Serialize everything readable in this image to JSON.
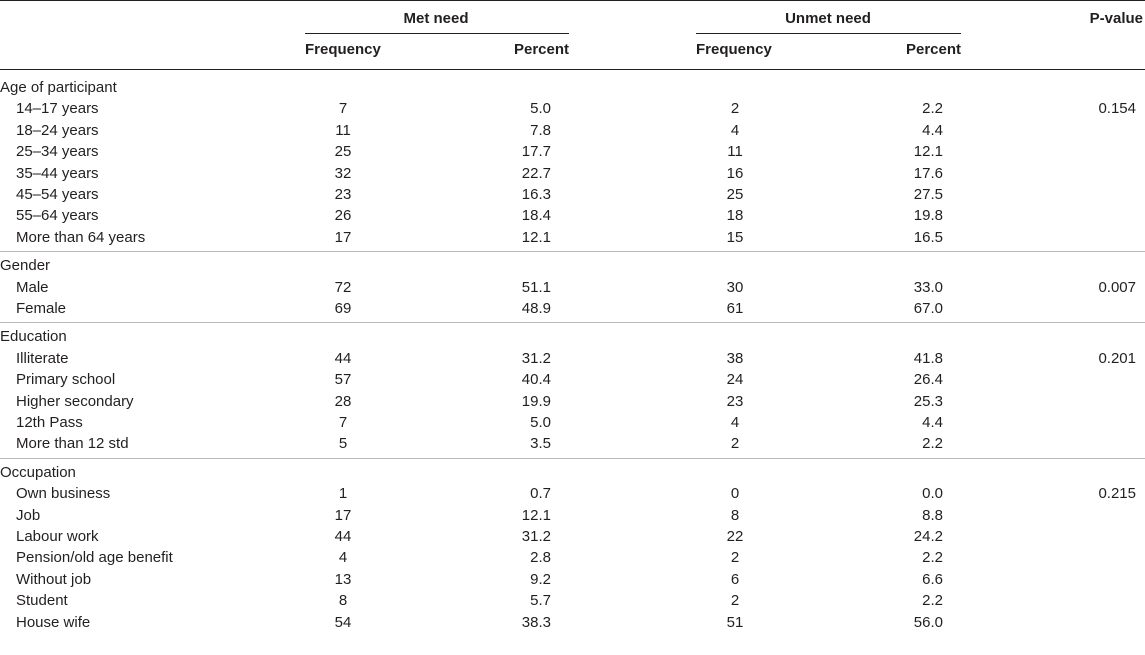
{
  "header": {
    "group_met": "Met need",
    "group_unmet": "Unmet need",
    "pvalue": "P-value",
    "col_freq": "Frequency",
    "col_pct": "Percent"
  },
  "sections": [
    {
      "title": "Age of participant",
      "pvalue": "0.154",
      "rows": [
        {
          "label": "14–17 years",
          "met_freq": "7",
          "met_pct": "5.0",
          "unmet_freq": "2",
          "unmet_pct": "2.2"
        },
        {
          "label": "18–24 years",
          "met_freq": "11",
          "met_pct": "7.8",
          "unmet_freq": "4",
          "unmet_pct": "4.4"
        },
        {
          "label": "25–34 years",
          "met_freq": "25",
          "met_pct": "17.7",
          "unmet_freq": "11",
          "unmet_pct": "12.1"
        },
        {
          "label": "35–44 years",
          "met_freq": "32",
          "met_pct": "22.7",
          "unmet_freq": "16",
          "unmet_pct": "17.6"
        },
        {
          "label": "45–54 years",
          "met_freq": "23",
          "met_pct": "16.3",
          "unmet_freq": "25",
          "unmet_pct": "27.5"
        },
        {
          "label": "55–64 years",
          "met_freq": "26",
          "met_pct": "18.4",
          "unmet_freq": "18",
          "unmet_pct": "19.8"
        },
        {
          "label": "More than 64 years",
          "met_freq": "17",
          "met_pct": "12.1",
          "unmet_freq": "15",
          "unmet_pct": "16.5"
        }
      ]
    },
    {
      "title": "Gender",
      "pvalue": "0.007",
      "rows": [
        {
          "label": "Male",
          "met_freq": "72",
          "met_pct": "51.1",
          "unmet_freq": "30",
          "unmet_pct": "33.0"
        },
        {
          "label": "Female",
          "met_freq": "69",
          "met_pct": "48.9",
          "unmet_freq": "61",
          "unmet_pct": "67.0"
        }
      ]
    },
    {
      "title": "Education",
      "pvalue": "0.201",
      "rows": [
        {
          "label": "Illiterate",
          "met_freq": "44",
          "met_pct": "31.2",
          "unmet_freq": "38",
          "unmet_pct": "41.8"
        },
        {
          "label": "Primary school",
          "met_freq": "57",
          "met_pct": "40.4",
          "unmet_freq": "24",
          "unmet_pct": "26.4"
        },
        {
          "label": "Higher secondary",
          "met_freq": "28",
          "met_pct": "19.9",
          "unmet_freq": "23",
          "unmet_pct": "25.3"
        },
        {
          "label": "12th Pass",
          "met_freq": "7",
          "met_pct": "5.0",
          "unmet_freq": "4",
          "unmet_pct": "4.4"
        },
        {
          "label": "More than 12 std",
          "met_freq": "5",
          "met_pct": "3.5",
          "unmet_freq": "2",
          "unmet_pct": "2.2"
        }
      ]
    },
    {
      "title": "Occupation",
      "pvalue": "0.215",
      "rows": [
        {
          "label": "Own business",
          "met_freq": "1",
          "met_pct": "0.7",
          "unmet_freq": "0",
          "unmet_pct": "0.0"
        },
        {
          "label": "Job",
          "met_freq": "17",
          "met_pct": "12.1",
          "unmet_freq": "8",
          "unmet_pct": "8.8"
        },
        {
          "label": "Labour work",
          "met_freq": "44",
          "met_pct": "31.2",
          "unmet_freq": "22",
          "unmet_pct": "24.2"
        },
        {
          "label": "Pension/old age benefit",
          "met_freq": "4",
          "met_pct": "2.8",
          "unmet_freq": "2",
          "unmet_pct": "2.2"
        },
        {
          "label": "Without job",
          "met_freq": "13",
          "met_pct": "9.2",
          "unmet_freq": "6",
          "unmet_pct": "6.6"
        },
        {
          "label": "Student",
          "met_freq": "8",
          "met_pct": "5.7",
          "unmet_freq": "2",
          "unmet_pct": "2.2"
        },
        {
          "label": "House wife",
          "met_freq": "54",
          "met_pct": "38.3",
          "unmet_freq": "51",
          "unmet_pct": "56.0"
        }
      ]
    }
  ]
}
